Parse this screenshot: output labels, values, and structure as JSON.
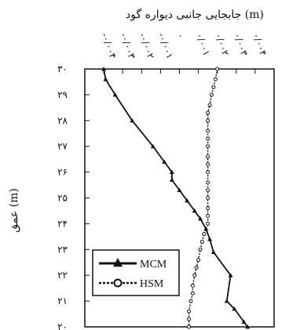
{
  "chart_data": {
    "type": "line",
    "title": "جابجایی جانبی دیواره گود (m)",
    "xlabel": "",
    "ylabel": "عمق (m)",
    "xlim": [
      -0.005,
      0.005
    ],
    "ylim": [
      20,
      30
    ],
    "x_tick_labels": [
      {
        "value": -0.004,
        "label": "-۰/۰۰۴"
      },
      {
        "value": -0.003,
        "label": "-۰/۰۰۳"
      },
      {
        "value": -0.002,
        "label": "-۰/۰۰۲"
      },
      {
        "value": -0.001,
        "label": "-۰/۰۰۱"
      },
      {
        "value": 0,
        "label": "۰"
      },
      {
        "value": 0.001,
        "label": "۰/۰۰۱"
      },
      {
        "value": 0.002,
        "label": "۰/۰۰۲"
      },
      {
        "value": 0.003,
        "label": "۰/۰۰۳"
      },
      {
        "value": 0.004,
        "label": "۰/۰۰۴"
      }
    ],
    "y_tick_labels": [
      {
        "value": 30,
        "label": "۳۰"
      },
      {
        "value": 29,
        "label": "۲۹"
      },
      {
        "value": 28,
        "label": "۲۸"
      },
      {
        "value": 27,
        "label": "۲۷"
      },
      {
        "value": 26,
        "label": "۲۶"
      },
      {
        "value": 25,
        "label": "۲۵"
      },
      {
        "value": 24,
        "label": "۲۴"
      },
      {
        "value": 23,
        "label": "۲۳"
      },
      {
        "value": 22,
        "label": "۲۲"
      },
      {
        "value": 21,
        "label": "۲۱"
      },
      {
        "value": 20,
        "label": "۲۰"
      }
    ],
    "legend_position": "bottom-left",
    "series": [
      {
        "name": "MCM",
        "marker": "triangle",
        "color": "#111111",
        "points": [
          {
            "x": -0.004,
            "y": 30
          },
          {
            "x": -0.0039,
            "y": 29.6
          },
          {
            "x": -0.0034,
            "y": 29.0
          },
          {
            "x": -0.0025,
            "y": 28.0
          },
          {
            "x": -0.0014,
            "y": 27.0
          },
          {
            "x": -0.0008,
            "y": 26.4
          },
          {
            "x": -0.0004,
            "y": 26.0
          },
          {
            "x": -0.0004,
            "y": 25.7
          },
          {
            "x": 0.0,
            "y": 25.3
          },
          {
            "x": 0.0004,
            "y": 24.9
          },
          {
            "x": 0.0008,
            "y": 24.5
          },
          {
            "x": 0.0011,
            "y": 24.2
          },
          {
            "x": 0.0014,
            "y": 23.8
          },
          {
            "x": 0.0016,
            "y": 23.4
          },
          {
            "x": 0.0018,
            "y": 22.9
          },
          {
            "x": 0.0027,
            "y": 22.0
          },
          {
            "x": 0.0025,
            "y": 21.0
          },
          {
            "x": 0.0029,
            "y": 20.7
          },
          {
            "x": 0.0034,
            "y": 20.2
          },
          {
            "x": 0.0036,
            "y": 20.0
          }
        ]
      },
      {
        "name": "HSM",
        "marker": "circle-open",
        "color": "#111111",
        "points": [
          {
            "x": 0.002,
            "y": 30.0
          },
          {
            "x": 0.0019,
            "y": 29.6
          },
          {
            "x": 0.0018,
            "y": 29.3
          },
          {
            "x": 0.0017,
            "y": 29.0
          },
          {
            "x": 0.0016,
            "y": 28.6
          },
          {
            "x": 0.0015,
            "y": 28.3
          },
          {
            "x": 0.0015,
            "y": 28.0
          },
          {
            "x": 0.0015,
            "y": 27.6
          },
          {
            "x": 0.0015,
            "y": 27.3
          },
          {
            "x": 0.0015,
            "y": 27.0
          },
          {
            "x": 0.0015,
            "y": 26.6
          },
          {
            "x": 0.0015,
            "y": 26.3
          },
          {
            "x": 0.0015,
            "y": 26.0
          },
          {
            "x": 0.0015,
            "y": 25.6
          },
          {
            "x": 0.0015,
            "y": 25.3
          },
          {
            "x": 0.0015,
            "y": 25.0
          },
          {
            "x": 0.0015,
            "y": 24.6
          },
          {
            "x": 0.0015,
            "y": 24.3
          },
          {
            "x": 0.0015,
            "y": 24.0
          },
          {
            "x": 0.0013,
            "y": 23.6
          },
          {
            "x": 0.0012,
            "y": 23.3
          },
          {
            "x": 0.0011,
            "y": 23.0
          },
          {
            "x": 0.001,
            "y": 22.6
          },
          {
            "x": 0.0009,
            "y": 22.3
          },
          {
            "x": 0.0008,
            "y": 22.0
          },
          {
            "x": 0.0007,
            "y": 21.6
          },
          {
            "x": 0.0007,
            "y": 21.3
          },
          {
            "x": 0.0006,
            "y": 21.0
          },
          {
            "x": 0.0005,
            "y": 20.6
          },
          {
            "x": 0.0005,
            "y": 20.3
          },
          {
            "x": 0.0005,
            "y": 20.0
          }
        ]
      }
    ]
  }
}
